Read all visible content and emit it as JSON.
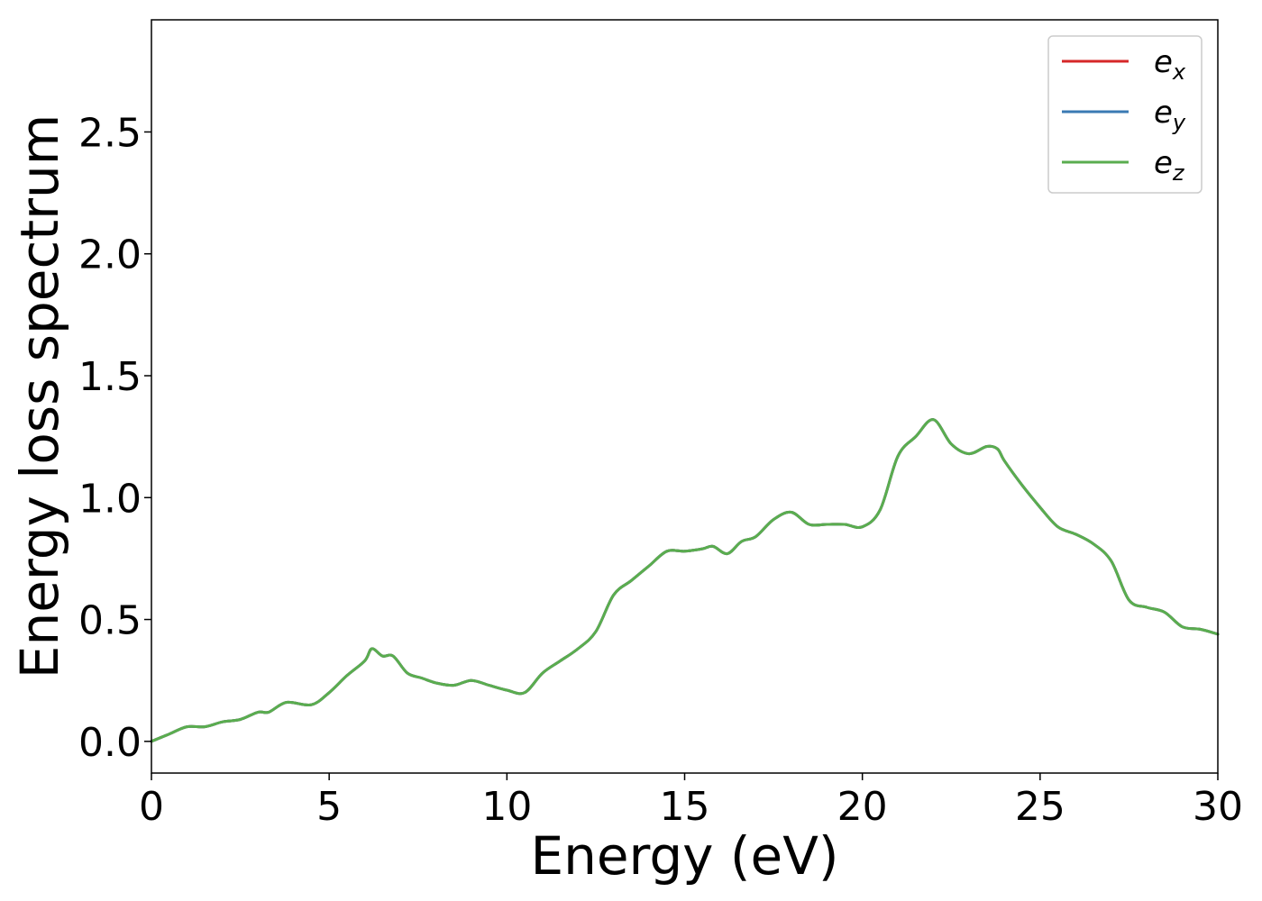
{
  "chart_data": {
    "type": "line",
    "xlabel": "Energy (eV)",
    "ylabel": "Energy loss spectrum",
    "xlim": [
      0,
      30
    ],
    "ylim": [
      -0.13,
      2.96
    ],
    "xticks": [
      0,
      5,
      10,
      15,
      20,
      25,
      30
    ],
    "xtick_labels": [
      "0",
      "5",
      "10",
      "15",
      "20",
      "25",
      "30"
    ],
    "yticks": [
      0.0,
      0.5,
      1.0,
      1.5,
      2.0,
      2.5
    ],
    "ytick_labels": [
      "0.0",
      "0.5",
      "1.0",
      "1.5",
      "2.0",
      "2.5"
    ],
    "grid": false,
    "legend_position": "top-right",
    "series": [
      {
        "name": "e_x",
        "legend_base": "e",
        "legend_sub": "x",
        "color": "#d62728",
        "x": [
          0,
          0.5,
          1,
          1.5,
          2,
          2.5,
          3,
          3.3,
          3.8,
          4.5,
          5,
          5.5,
          6,
          6.2,
          6.5,
          6.8,
          7.2,
          7.6,
          8,
          8.5,
          9,
          9.5,
          10,
          10.5,
          11,
          11.5,
          12,
          12.5,
          13,
          13.5,
          14,
          14.5,
          15,
          15.5,
          15.8,
          16.2,
          16.6,
          17,
          17.5,
          18,
          18.5,
          19,
          19.5,
          20,
          20.5,
          21,
          21.5,
          22,
          22.5,
          23,
          23.5,
          23.8,
          24,
          24.5,
          25,
          25.5,
          26,
          26.5,
          27,
          27.5,
          28,
          28.5,
          29,
          29.5,
          30
        ],
        "y": [
          0.0,
          0.03,
          0.06,
          0.06,
          0.08,
          0.09,
          0.12,
          0.12,
          0.16,
          0.15,
          0.2,
          0.27,
          0.33,
          0.38,
          0.35,
          0.35,
          0.28,
          0.26,
          0.24,
          0.23,
          0.25,
          0.23,
          0.21,
          0.2,
          0.28,
          0.33,
          0.38,
          0.45,
          0.6,
          0.66,
          0.72,
          0.78,
          0.78,
          0.79,
          0.8,
          0.77,
          0.82,
          0.84,
          0.91,
          0.94,
          0.89,
          0.89,
          0.89,
          0.88,
          0.95,
          1.17,
          1.25,
          1.32,
          1.22,
          1.18,
          1.21,
          1.2,
          1.15,
          1.05,
          0.96,
          0.88,
          0.85,
          0.81,
          0.74,
          0.58,
          0.55,
          0.53,
          0.47,
          0.46,
          0.44
        ]
      },
      {
        "name": "e_y",
        "legend_base": "e",
        "legend_sub": "y",
        "color": "#3a7ab3",
        "x": [
          0,
          0.5,
          1,
          1.5,
          2,
          2.5,
          3,
          3.3,
          3.8,
          4.5,
          5,
          5.5,
          6,
          6.2,
          6.5,
          6.8,
          7.2,
          7.6,
          8,
          8.5,
          9,
          9.5,
          10,
          10.5,
          11,
          11.5,
          12,
          12.5,
          13,
          13.5,
          14,
          14.5,
          15,
          15.5,
          15.8,
          16.2,
          16.6,
          17,
          17.5,
          18,
          18.5,
          19,
          19.5,
          20,
          20.5,
          21,
          21.5,
          22,
          22.5,
          23,
          23.5,
          23.8,
          24,
          24.5,
          25,
          25.5,
          26,
          26.5,
          27,
          27.5,
          28,
          28.5,
          29,
          29.5,
          30
        ],
        "y": [
          0.0,
          0.03,
          0.06,
          0.06,
          0.08,
          0.09,
          0.12,
          0.12,
          0.16,
          0.15,
          0.2,
          0.27,
          0.33,
          0.38,
          0.35,
          0.35,
          0.28,
          0.26,
          0.24,
          0.23,
          0.25,
          0.23,
          0.21,
          0.2,
          0.28,
          0.33,
          0.38,
          0.45,
          0.6,
          0.66,
          0.72,
          0.78,
          0.78,
          0.79,
          0.8,
          0.77,
          0.82,
          0.84,
          0.91,
          0.94,
          0.89,
          0.89,
          0.89,
          0.88,
          0.95,
          1.17,
          1.25,
          1.32,
          1.22,
          1.18,
          1.21,
          1.2,
          1.15,
          1.05,
          0.96,
          0.88,
          0.85,
          0.81,
          0.74,
          0.58,
          0.55,
          0.53,
          0.47,
          0.46,
          0.44
        ]
      },
      {
        "name": "e_z",
        "legend_base": "e",
        "legend_sub": "z",
        "color": "#5aad4f",
        "x": [
          0,
          0.5,
          1,
          1.5,
          2,
          2.5,
          3,
          3.3,
          3.8,
          4.5,
          5,
          5.5,
          6,
          6.2,
          6.5,
          6.8,
          7.2,
          7.6,
          8,
          8.5,
          9,
          9.5,
          10,
          10.5,
          11,
          11.5,
          12,
          12.5,
          13,
          13.5,
          14,
          14.5,
          15,
          15.5,
          15.8,
          16.2,
          16.6,
          17,
          17.5,
          18,
          18.5,
          19,
          19.5,
          20,
          20.5,
          21,
          21.5,
          22,
          22.5,
          23,
          23.5,
          23.8,
          24,
          24.5,
          25,
          25.5,
          26,
          26.5,
          27,
          27.5,
          28,
          28.5,
          29,
          29.5,
          30
        ],
        "y": [
          0.0,
          0.03,
          0.06,
          0.06,
          0.08,
          0.09,
          0.12,
          0.12,
          0.16,
          0.15,
          0.2,
          0.27,
          0.33,
          0.38,
          0.35,
          0.35,
          0.28,
          0.26,
          0.24,
          0.23,
          0.25,
          0.23,
          0.21,
          0.2,
          0.28,
          0.33,
          0.38,
          0.45,
          0.6,
          0.66,
          0.72,
          0.78,
          0.78,
          0.79,
          0.8,
          0.77,
          0.82,
          0.84,
          0.91,
          0.94,
          0.89,
          0.89,
          0.89,
          0.88,
          0.95,
          1.17,
          1.25,
          1.32,
          1.22,
          1.18,
          1.21,
          1.2,
          1.15,
          1.05,
          0.96,
          0.88,
          0.85,
          0.81,
          0.74,
          0.58,
          0.55,
          0.53,
          0.47,
          0.46,
          0.44
        ]
      }
    ]
  }
}
